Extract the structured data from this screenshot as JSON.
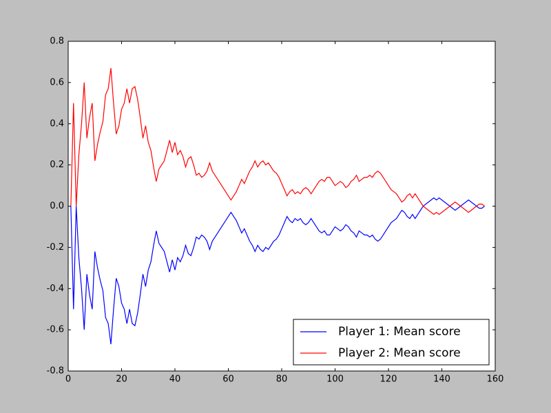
{
  "chart_data": {
    "type": "line",
    "x": [
      1,
      2,
      3,
      4,
      5,
      6,
      7,
      8,
      9,
      10,
      11,
      12,
      13,
      14,
      15,
      16,
      17,
      18,
      19,
      20,
      21,
      22,
      23,
      24,
      25,
      26,
      27,
      28,
      29,
      30,
      31,
      32,
      33,
      34,
      35,
      36,
      37,
      38,
      39,
      40,
      41,
      42,
      43,
      44,
      45,
      46,
      47,
      48,
      49,
      50,
      51,
      52,
      53,
      54,
      55,
      56,
      57,
      58,
      59,
      60,
      61,
      62,
      63,
      64,
      65,
      66,
      67,
      68,
      69,
      70,
      71,
      72,
      73,
      74,
      75,
      76,
      77,
      78,
      79,
      80,
      81,
      82,
      83,
      84,
      85,
      86,
      87,
      88,
      89,
      90,
      91,
      92,
      93,
      94,
      95,
      96,
      97,
      98,
      99,
      100,
      101,
      102,
      103,
      104,
      105,
      106,
      107,
      108,
      109,
      110,
      111,
      112,
      113,
      114,
      115,
      116,
      117,
      118,
      119,
      120,
      121,
      122,
      123,
      124,
      125,
      126,
      127,
      128,
      129,
      130,
      131,
      132,
      133,
      134,
      135,
      136,
      137,
      138,
      139,
      140,
      141,
      142,
      143,
      144,
      145,
      146,
      147,
      148,
      149,
      150,
      151,
      152,
      153,
      154,
      155,
      156
    ],
    "series": [
      {
        "name": "Player 1: Mean score",
        "color": "#0000ff",
        "values": [
          0,
          -0.5,
          0,
          -0.25,
          -0.4,
          -0.6,
          -0.33,
          -0.43,
          -0.5,
          -0.22,
          -0.3,
          -0.36,
          -0.41,
          -0.54,
          -0.57,
          -0.67,
          -0.5,
          -0.35,
          -0.39,
          -0.47,
          -0.5,
          -0.57,
          -0.5,
          -0.57,
          -0.58,
          -0.52,
          -0.43,
          -0.33,
          -0.39,
          -0.31,
          -0.27,
          -0.19,
          -0.12,
          -0.18,
          -0.2,
          -0.22,
          -0.27,
          -0.32,
          -0.26,
          -0.31,
          -0.25,
          -0.27,
          -0.24,
          -0.19,
          -0.23,
          -0.24,
          -0.2,
          -0.15,
          -0.16,
          -0.14,
          -0.15,
          -0.17,
          -0.21,
          -0.17,
          -0.15,
          -0.13,
          -0.11,
          -0.09,
          -0.07,
          -0.05,
          -0.03,
          -0.05,
          -0.07,
          -0.1,
          -0.13,
          -0.11,
          -0.14,
          -0.17,
          -0.19,
          -0.22,
          -0.19,
          -0.21,
          -0.22,
          -0.2,
          -0.21,
          -0.19,
          -0.17,
          -0.16,
          -0.14,
          -0.11,
          -0.08,
          -0.05,
          -0.07,
          -0.08,
          -0.06,
          -0.07,
          -0.06,
          -0.08,
          -0.09,
          -0.08,
          -0.06,
          -0.08,
          -0.1,
          -0.12,
          -0.13,
          -0.12,
          -0.14,
          -0.14,
          -0.12,
          -0.1,
          -0.11,
          -0.12,
          -0.11,
          -0.09,
          -0.1,
          -0.12,
          -0.13,
          -0.15,
          -0.12,
          -0.13,
          -0.14,
          -0.14,
          -0.15,
          -0.14,
          -0.16,
          -0.17,
          -0.16,
          -0.14,
          -0.12,
          -0.1,
          -0.08,
          -0.07,
          -0.06,
          -0.04,
          -0.02,
          -0.03,
          -0.05,
          -0.06,
          -0.04,
          -0.06,
          -0.04,
          -0.02,
          0,
          0.01,
          0.02,
          0.03,
          0.04,
          0.03,
          0.04,
          0.03,
          0.02,
          0.01,
          0,
          -0.01,
          -0.02,
          -0.01,
          0,
          0.01,
          0.02,
          0.03,
          0.02,
          0.01,
          0,
          -0.01,
          -0.01,
          0
        ]
      },
      {
        "name": "Player 2: Mean score",
        "color": "#ff0000",
        "values": [
          0,
          0.5,
          0,
          0.25,
          0.4,
          0.6,
          0.33,
          0.43,
          0.5,
          0.22,
          0.3,
          0.36,
          0.41,
          0.54,
          0.57,
          0.67,
          0.5,
          0.35,
          0.39,
          0.47,
          0.5,
          0.57,
          0.5,
          0.57,
          0.58,
          0.52,
          0.43,
          0.33,
          0.39,
          0.31,
          0.27,
          0.19,
          0.12,
          0.18,
          0.2,
          0.22,
          0.27,
          0.32,
          0.26,
          0.31,
          0.25,
          0.27,
          0.24,
          0.19,
          0.23,
          0.24,
          0.2,
          0.15,
          0.16,
          0.14,
          0.15,
          0.17,
          0.21,
          0.17,
          0.15,
          0.13,
          0.11,
          0.09,
          0.07,
          0.05,
          0.03,
          0.05,
          0.07,
          0.1,
          0.13,
          0.11,
          0.14,
          0.17,
          0.19,
          0.22,
          0.19,
          0.21,
          0.22,
          0.2,
          0.21,
          0.19,
          0.17,
          0.16,
          0.14,
          0.11,
          0.08,
          0.05,
          0.07,
          0.08,
          0.06,
          0.07,
          0.06,
          0.08,
          0.09,
          0.08,
          0.06,
          0.08,
          0.1,
          0.12,
          0.13,
          0.12,
          0.14,
          0.14,
          0.12,
          0.1,
          0.11,
          0.12,
          0.11,
          0.09,
          0.1,
          0.12,
          0.13,
          0.15,
          0.12,
          0.13,
          0.14,
          0.14,
          0.15,
          0.14,
          0.16,
          0.17,
          0.16,
          0.14,
          0.12,
          0.1,
          0.08,
          0.07,
          0.06,
          0.04,
          0.02,
          0.03,
          0.05,
          0.06,
          0.04,
          0.06,
          0.04,
          0.02,
          0,
          -0.01,
          -0.02,
          -0.03,
          -0.04,
          -0.03,
          -0.04,
          -0.03,
          -0.02,
          -0.01,
          0,
          0.01,
          0.02,
          0.01,
          0,
          -0.01,
          -0.02,
          -0.03,
          -0.02,
          -0.01,
          0,
          0.01,
          0.01,
          0
        ]
      }
    ],
    "xlim": [
      0,
      160
    ],
    "xticks": [
      0,
      20,
      40,
      60,
      80,
      100,
      120,
      140,
      160
    ],
    "ylim": [
      -0.8,
      0.8
    ],
    "yticks": [
      -0.8,
      -0.6,
      -0.4,
      -0.2,
      {
        "value": 0,
        "label": "0.0"
      },
      0.2,
      0.4,
      0.6,
      0.8
    ],
    "grid": false,
    "legend": "lower right"
  }
}
